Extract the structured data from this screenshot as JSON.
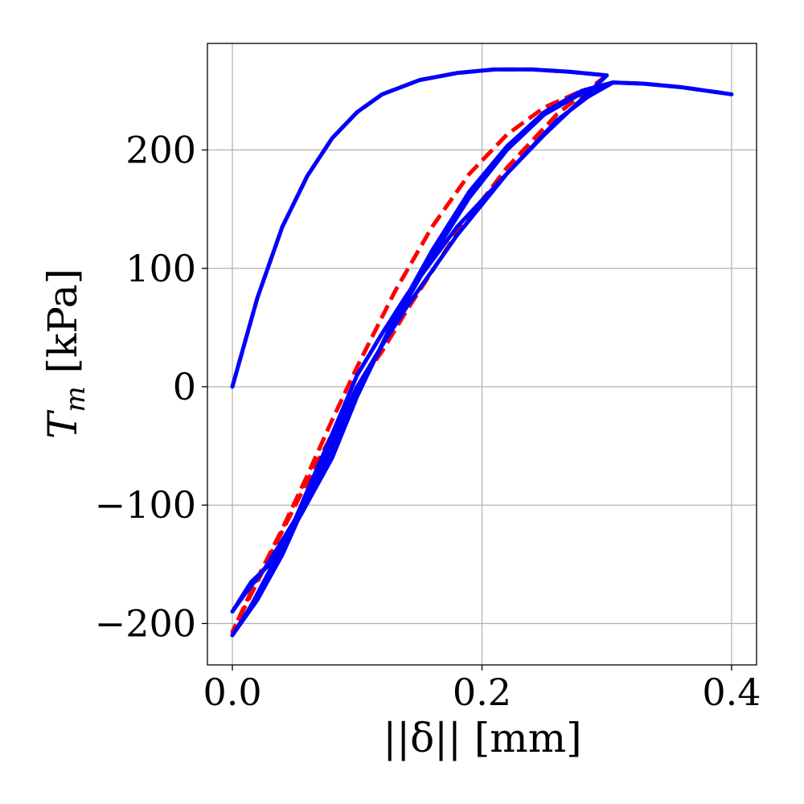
{
  "chart_data": {
    "type": "line",
    "title": "",
    "xlabel": "||δ|| [mm]",
    "ylabel_main": "T",
    "ylabel_sub": "m",
    "ylabel_unit": " [kPa]",
    "xlim": [
      -0.02,
      0.42
    ],
    "ylim": [
      -235,
      290
    ],
    "xticks": [
      0.0,
      0.2,
      0.4
    ],
    "xtick_labels": [
      "0.0",
      "0.2",
      "0.4"
    ],
    "yticks": [
      -200,
      -100,
      0,
      100,
      200
    ],
    "ytick_labels": [
      "−200",
      "−100",
      "0",
      "100",
      "200"
    ],
    "grid": true,
    "legend": "none",
    "series": [
      {
        "color": "#ff0000",
        "style": "dashed",
        "points": [
          [
            0.0,
            0
          ],
          [
            0.02,
            75
          ],
          [
            0.04,
            135
          ],
          [
            0.06,
            178
          ],
          [
            0.08,
            210
          ],
          [
            0.1,
            232
          ],
          [
            0.12,
            247
          ],
          [
            0.15,
            259
          ],
          [
            0.18,
            265
          ],
          [
            0.21,
            268
          ],
          [
            0.24,
            268
          ],
          [
            0.27,
            266
          ],
          [
            0.3,
            263
          ],
          [
            0.29,
            255
          ],
          [
            0.26,
            230
          ],
          [
            0.22,
            185
          ],
          [
            0.18,
            130
          ],
          [
            0.14,
            65
          ],
          [
            0.12,
            30
          ],
          [
            0.1,
            0
          ],
          [
            0.08,
            -40
          ],
          [
            0.06,
            -80
          ],
          [
            0.04,
            -122
          ],
          [
            0.02,
            -165
          ],
          [
            0.0,
            -207
          ],
          [
            0.02,
            -162
          ],
          [
            0.04,
            -120
          ],
          [
            0.06,
            -75
          ],
          [
            0.08,
            -28
          ],
          [
            0.1,
            17
          ],
          [
            0.13,
            80
          ],
          [
            0.16,
            135
          ],
          [
            0.19,
            180
          ],
          [
            0.22,
            213
          ],
          [
            0.25,
            236
          ],
          [
            0.28,
            250
          ],
          [
            0.305,
            257
          ],
          [
            0.33,
            256
          ],
          [
            0.36,
            253
          ],
          [
            0.4,
            247
          ]
        ]
      },
      {
        "color": "#0000ff",
        "style": "solid",
        "points": [
          [
            0.0,
            0
          ],
          [
            0.02,
            75
          ],
          [
            0.04,
            135
          ],
          [
            0.06,
            178
          ],
          [
            0.08,
            210
          ],
          [
            0.1,
            232
          ],
          [
            0.12,
            247
          ],
          [
            0.15,
            259
          ],
          [
            0.18,
            265
          ],
          [
            0.21,
            268
          ],
          [
            0.24,
            268
          ],
          [
            0.27,
            266
          ],
          [
            0.3,
            263
          ],
          [
            0.28,
            243
          ],
          [
            0.25,
            213
          ],
          [
            0.22,
            180
          ],
          [
            0.18,
            135
          ],
          [
            0.14,
            78
          ],
          [
            0.12,
            45
          ],
          [
            0.1,
            10
          ],
          [
            0.08,
            -40
          ],
          [
            0.06,
            -88
          ],
          [
            0.045,
            -125
          ],
          [
            0.03,
            -150
          ],
          [
            0.015,
            -165
          ],
          [
            0.0,
            -190
          ],
          [
            0.01,
            -175
          ],
          [
            0.025,
            -155
          ],
          [
            0.04,
            -130
          ],
          [
            0.06,
            -95
          ],
          [
            0.08,
            -52
          ],
          [
            0.1,
            -5
          ],
          [
            0.13,
            55
          ],
          [
            0.16,
            110
          ],
          [
            0.19,
            160
          ],
          [
            0.22,
            200
          ],
          [
            0.25,
            230
          ],
          [
            0.28,
            248
          ],
          [
            0.305,
            257
          ],
          [
            0.285,
            245
          ],
          [
            0.26,
            225
          ],
          [
            0.22,
            180
          ],
          [
            0.18,
            128
          ],
          [
            0.14,
            68
          ],
          [
            0.12,
            35
          ],
          [
            0.1,
            0
          ],
          [
            0.08,
            -45
          ],
          [
            0.06,
            -95
          ],
          [
            0.04,
            -142
          ],
          [
            0.02,
            -180
          ],
          [
            0.0,
            -210
          ],
          [
            0.015,
            -185
          ],
          [
            0.035,
            -145
          ],
          [
            0.055,
            -108
          ],
          [
            0.08,
            -60
          ],
          [
            0.1,
            -8
          ],
          [
            0.13,
            58
          ],
          [
            0.16,
            115
          ],
          [
            0.19,
            165
          ],
          [
            0.22,
            203
          ],
          [
            0.25,
            232
          ],
          [
            0.28,
            250
          ],
          [
            0.305,
            257
          ],
          [
            0.33,
            256
          ],
          [
            0.36,
            253
          ],
          [
            0.4,
            247
          ]
        ]
      }
    ]
  }
}
